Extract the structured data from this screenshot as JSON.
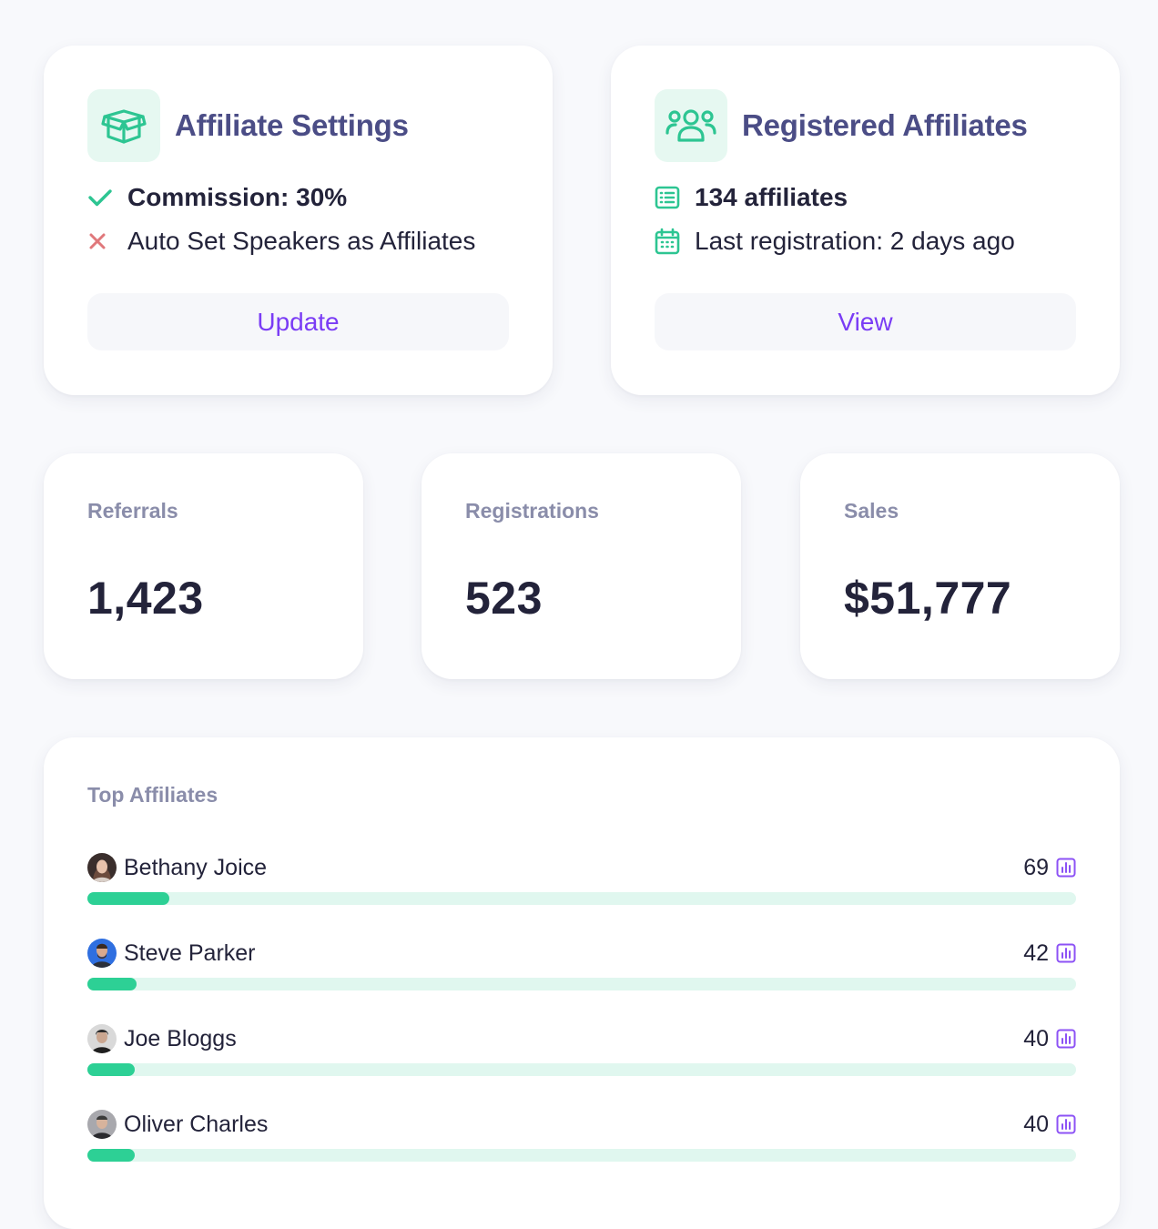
{
  "affiliate_settings": {
    "title": "Affiliate Settings",
    "icon": "box-icon",
    "items": [
      {
        "icon": "check-icon",
        "text": "Commission: 30%",
        "status": "enabled"
      },
      {
        "icon": "close-icon",
        "text": "Auto Set Speakers as Affiliates",
        "status": "disabled"
      }
    ],
    "button_label": "Update"
  },
  "registered_affiliates": {
    "title": "Registered Affiliates",
    "icon": "users-group-icon",
    "items": [
      {
        "icon": "list-icon",
        "text": "134 affiliates"
      },
      {
        "icon": "calendar-icon",
        "text": "Last registration: 2 days ago"
      }
    ],
    "button_label": "View"
  },
  "stats": [
    {
      "label": "Referrals",
      "value": "1,423"
    },
    {
      "label": "Registrations",
      "value": "523"
    },
    {
      "label": "Sales",
      "value": "$51,777"
    }
  ],
  "top_affiliates": {
    "title": "Top Affiliates",
    "rows": [
      {
        "name": "Bethany Joice",
        "count": "69",
        "progress": 0.083
      },
      {
        "name": "Steve Parker",
        "count": "42",
        "progress": 0.05
      },
      {
        "name": "Joe Bloggs",
        "count": "40",
        "progress": 0.048
      },
      {
        "name": "Oliver Charles",
        "count": "40",
        "progress": 0.048
      }
    ]
  },
  "colors": {
    "accent_green": "#2dd095",
    "accent_purple": "#7a3cf5",
    "title_indigo": "#4b4d86",
    "muted_label": "#8a8daa",
    "error_red": "#e0787b",
    "track_green": "#e0f7ef"
  }
}
